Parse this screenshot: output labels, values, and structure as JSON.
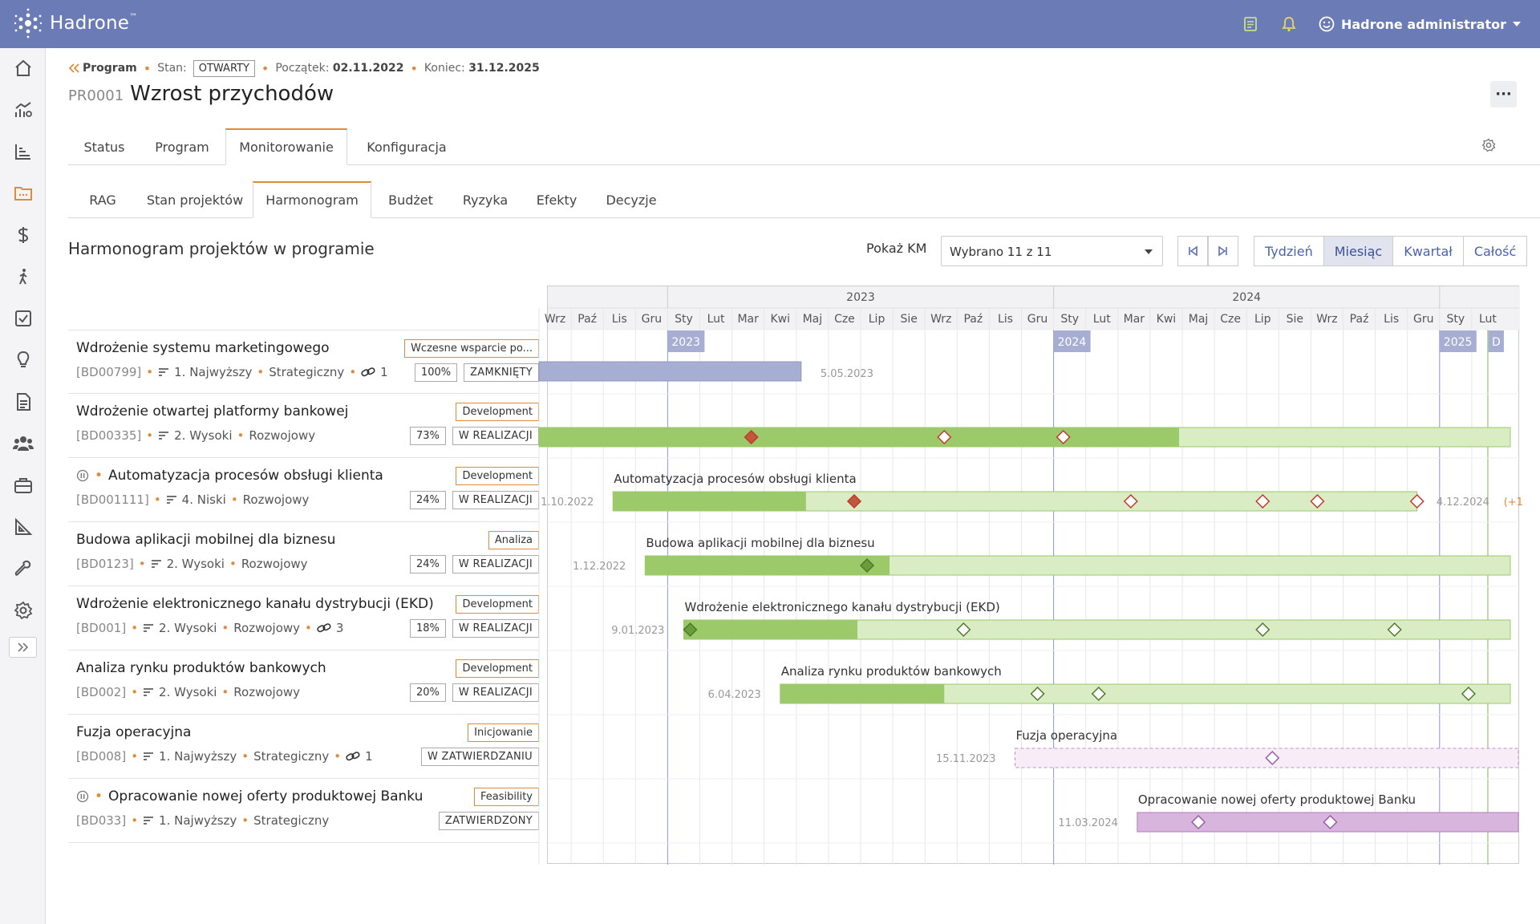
{
  "app": {
    "name": "Hadrone",
    "trademark": "™"
  },
  "topbar": {
    "user": "Hadrone administrator"
  },
  "breadcrumb": {
    "back_label": "Program",
    "stan_label": "Stan:",
    "stan_value": "OTWARTY",
    "start_label": "Początek:",
    "start_value": "02.11.2022",
    "end_label": "Koniec:",
    "end_value": "31.12.2025"
  },
  "program": {
    "code": "PR0001",
    "name": "Wzrost przychodów"
  },
  "tabs": [
    {
      "label": "Status"
    },
    {
      "label": "Program"
    },
    {
      "label": "Monitorowanie",
      "active": true
    },
    {
      "label": "Konfiguracja"
    }
  ],
  "subtabs": [
    {
      "label": "RAG"
    },
    {
      "label": "Stan projektów"
    },
    {
      "label": "Harmonogram",
      "active": true
    },
    {
      "label": "Budżet"
    },
    {
      "label": "Ryzyka"
    },
    {
      "label": "Efekty"
    },
    {
      "label": "Decyzje"
    }
  ],
  "section_title": "Harmonogram projektów w programie",
  "km": {
    "label": "Pokaż KM",
    "selected": "Wybrano 11 z 11"
  },
  "zoom": [
    {
      "label": "Tydzień"
    },
    {
      "label": "Miesiąc",
      "active": true
    },
    {
      "label": "Kwartał"
    },
    {
      "label": "Całość"
    }
  ],
  "projects": [
    {
      "name": "Wdrożenie systemu marketingowego",
      "code": "[BD00799]",
      "priority": "1. Najwyższy",
      "type": "Strategiczny",
      "links": "1",
      "phase": "Wczesne wsparcie po...",
      "percent": "100%",
      "status": "ZAMKNIĘTY",
      "paused": false
    },
    {
      "name": "Wdrożenie otwartej platformy bankowej",
      "code": "[BD00335]",
      "priority": "2. Wysoki",
      "type": "Rozwojowy",
      "links": "",
      "phase": "Development",
      "percent": "73%",
      "status": "W REALIZACJI",
      "paused": false
    },
    {
      "name": "Automatyzacja procesów obsługi klienta",
      "code": "[BD001111]",
      "priority": "4. Niski",
      "type": "Rozwojowy",
      "links": "",
      "phase": "Development",
      "percent": "24%",
      "status": "W REALIZACJI",
      "paused": true
    },
    {
      "name": "Budowa aplikacji mobilnej dla biznesu",
      "code": "[BD0123]",
      "priority": "2. Wysoki",
      "type": "Rozwojowy",
      "links": "",
      "phase": "Analiza",
      "percent": "24%",
      "status": "W REALIZACJI",
      "paused": false
    },
    {
      "name": "Wdrożenie elektronicznego kanału dystrybucji (EKD)",
      "code": "[BD001]",
      "priority": "2. Wysoki",
      "type": "Rozwojowy",
      "links": "3",
      "phase": "Development",
      "percent": "18%",
      "status": "W REALIZACJI",
      "paused": false
    },
    {
      "name": "Analiza rynku produktów bankowych",
      "code": "[BD002]",
      "priority": "2. Wysoki",
      "type": "Rozwojowy",
      "links": "",
      "phase": "Development",
      "percent": "20%",
      "status": "W REALIZACJI",
      "paused": false
    },
    {
      "name": "Fuzja operacyjna",
      "code": "[BD008]",
      "priority": "1. Najwyższy",
      "type": "Strategiczny",
      "links": "1",
      "phase": "Inicjowanie",
      "percent": "",
      "status": "W ZATWIERDZANIU",
      "paused": false
    },
    {
      "name": "Opracowanie nowej oferty produktowej Banku",
      "code": "[BD033]",
      "priority": "1. Najwyższy",
      "type": "Strategiczny",
      "links": "",
      "phase": "Feasibility",
      "percent": "",
      "status": "ZATWIERDZONY",
      "paused": true
    }
  ],
  "gantt": {
    "years": [
      "2023",
      "2024"
    ],
    "months": [
      "Wrz",
      "Paź",
      "Lis",
      "Gru",
      "Sty",
      "Lut",
      "Mar",
      "Kwi",
      "Maj",
      "Cze",
      "Lip",
      "Sie",
      "Wrz",
      "Paź",
      "Lis",
      "Gru",
      "Sty",
      "Lut",
      "Mar",
      "Kwi",
      "Maj",
      "Cze",
      "Lip",
      "Sie",
      "Wrz",
      "Paź",
      "Lis",
      "Gru",
      "Sty",
      "Lut"
    ],
    "year_flags": [
      "2023",
      "2024",
      "2025",
      "D"
    ],
    "bars": [
      {
        "start_label": "",
        "end_label": "5.05.2023",
        "title": "",
        "kind": "closed",
        "start_month": 0,
        "end_month": 8.15,
        "progress_end": 8.15,
        "milestones": []
      },
      {
        "start_label": "",
        "end_label": "",
        "title": "",
        "kind": "active",
        "start_month": 0,
        "end_month": 30.2,
        "progress_end": 19.9,
        "milestones": [
          {
            "m": 6.6,
            "done": true
          },
          {
            "m": 12.6,
            "done": false
          },
          {
            "m": 16.3,
            "done": false
          }
        ]
      },
      {
        "start_label": "1.10.2022",
        "end_label": "4.12.2024",
        "extra_label": "(+1",
        "title": "Automatyzacja procesów obsługi klienta",
        "kind": "active",
        "start_month": 2.3,
        "end_month": 27.3,
        "progress_end": 8.3,
        "milestones": [
          {
            "m": 9.8,
            "done": true
          },
          {
            "m": 18.4,
            "done": false
          },
          {
            "m": 22.5,
            "done": false
          },
          {
            "m": 24.2,
            "done": false
          },
          {
            "m": 27.3,
            "done": false
          }
        ]
      },
      {
        "start_label": "1.12.2022",
        "end_label": "",
        "title": "Budowa aplikacji mobilnej dla biznesu",
        "kind": "active",
        "start_month": 3.3,
        "end_month": 30.2,
        "progress_end": 10.9,
        "milestones": [
          {
            "m": 10.2,
            "done": true,
            "green": true
          }
        ]
      },
      {
        "start_label": "9.01.2023",
        "end_label": "",
        "title": "Wdrożenie elektronicznego kanału dystrybucji (EKD)",
        "kind": "active",
        "start_month": 4.5,
        "end_month": 30.2,
        "progress_end": 9.9,
        "milestones": [
          {
            "m": 4.7,
            "done": true,
            "green": true
          },
          {
            "m": 13.2,
            "done": false,
            "green": true
          },
          {
            "m": 22.5,
            "done": false,
            "green": true
          },
          {
            "m": 26.6,
            "done": false,
            "green": true
          }
        ]
      },
      {
        "start_label": "6.04.2023",
        "end_label": "",
        "title": "Analiza rynku produktów bankowych",
        "kind": "active",
        "start_month": 7.5,
        "end_month": 30.2,
        "progress_end": 12.6,
        "milestones": [
          {
            "m": 15.5,
            "done": false,
            "green": true
          },
          {
            "m": 17.4,
            "done": false,
            "green": true
          },
          {
            "m": 28.9,
            "done": false,
            "green": true
          }
        ]
      },
      {
        "start_label": "15.11.2023",
        "end_label": "",
        "title": "Fuzja operacyjna",
        "kind": "draft",
        "start_month": 14.8,
        "end_month": 30.2,
        "progress_end": 14.8,
        "milestones": [
          {
            "m": 22.8,
            "done": false,
            "purple": true
          }
        ]
      },
      {
        "start_label": "11.03.2024",
        "end_label": "",
        "title": "Opracowanie nowej oferty produktowej Banku",
        "kind": "approved",
        "start_month": 18.6,
        "end_month": 30.2,
        "progress_end": 18.6,
        "milestones": [
          {
            "m": 20.5,
            "done": false,
            "purple": true
          },
          {
            "m": 24.6,
            "done": false,
            "purple": true
          }
        ]
      }
    ]
  },
  "colors": {
    "topbar": "#6b7bb5",
    "accent": "#e08a3c",
    "progress_green": "#9cca6b",
    "remaining_green": "#d9ecc4",
    "closed_bar": "#a7aed3",
    "milestone_red": "#c0392b",
    "purple": "#d7b5dc"
  }
}
